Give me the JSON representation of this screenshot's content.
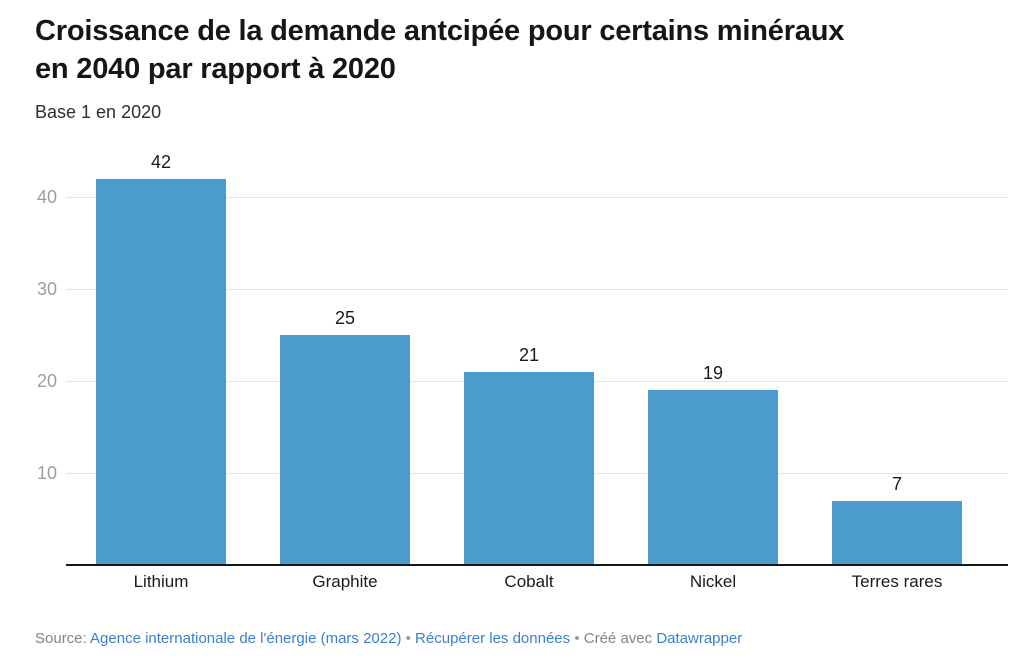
{
  "header": {
    "title_lines": [
      "Croissance de la demande antcipée pour certains minéraux",
      "en 2040 par rapport à 2020"
    ],
    "subtitle": "Base 1 en 2020"
  },
  "chart_data": {
    "type": "bar",
    "title": "Croissance de la demande antcipée pour certains minéraux en 2040 par rapport à 2020",
    "subtitle": "Base 1 en 2020",
    "categories": [
      "Lithium",
      "Graphite",
      "Cobalt",
      "Nickel",
      "Terres rares"
    ],
    "values": [
      42,
      25,
      21,
      19,
      7
    ],
    "xlabel": "",
    "ylabel": "Base 1 en 2020",
    "ylim": [
      0,
      45
    ],
    "yticks": [
      10,
      20,
      30,
      40
    ],
    "grid": true,
    "value_labels": true,
    "legend": "none"
  },
  "colors": {
    "bar": "#4b9cca",
    "gridline": "#e3e3e3",
    "tick_text": "#9e9e9e",
    "axis_line": "#161616",
    "title_text": "#161616",
    "footer_text": "#848484",
    "link_text": "#3c7ed2"
  },
  "footer": {
    "source_label": "Source:",
    "source_link": "Agence internationale de l'énergie (mars 2022)",
    "separator": "•",
    "data_link": "Récupérer les données",
    "created_with": "Créé avec",
    "tool_link": "Datawrapper"
  }
}
